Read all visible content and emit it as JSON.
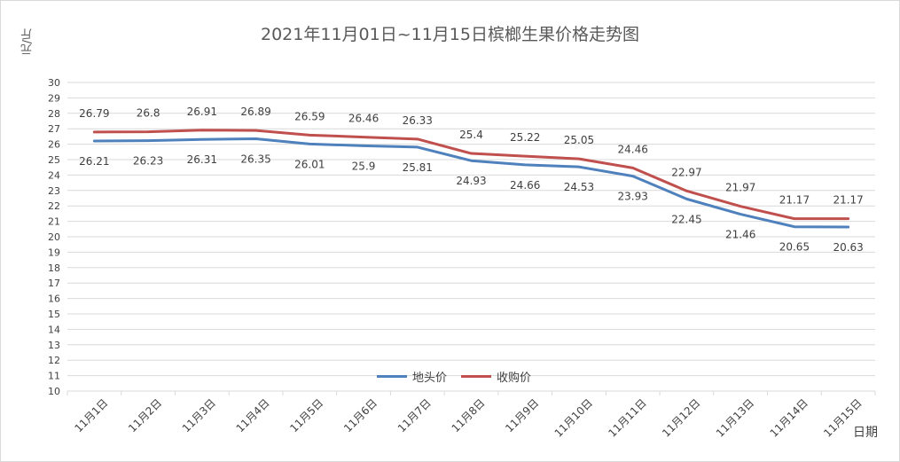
{
  "chart_data": {
    "type": "line",
    "title": "2021年11月01日~11月15日槟榔生果价格走势图",
    "ylabel": "元/斤",
    "xlabel": "日期",
    "ylim": [
      10,
      30
    ],
    "yticks": [
      10,
      11,
      12,
      13,
      14,
      15,
      16,
      17,
      18,
      19,
      20,
      21,
      22,
      23,
      24,
      25,
      26,
      27,
      28,
      29,
      30
    ],
    "grid": true,
    "legend_position": "bottom-center",
    "categories": [
      "11月1日",
      "11月2日",
      "11月3日",
      "11月4日",
      "11月5日",
      "11月6日",
      "11月7日",
      "11月8日",
      "11月9日",
      "11月10日",
      "11月11日",
      "11月12日",
      "11月13日",
      "11月14日",
      "11月15日"
    ],
    "series": [
      {
        "name": "地头价",
        "color": "#4f81bd",
        "values": [
          26.21,
          26.23,
          26.31,
          26.35,
          26.01,
          25.9,
          25.81,
          24.93,
          24.66,
          24.53,
          23.93,
          22.45,
          21.46,
          20.65,
          20.63
        ],
        "labels": [
          "26.21",
          "26.23",
          "26.31",
          "26.35",
          "26.01",
          "25.9",
          "25.81",
          "24.93",
          "24.66",
          "24.53",
          "23.93",
          "22.45",
          "21.46",
          "20.65",
          "20.63"
        ],
        "label_position": "below"
      },
      {
        "name": "收购价",
        "color": "#c0504d",
        "values": [
          26.79,
          26.8,
          26.91,
          26.89,
          26.59,
          26.46,
          26.33,
          25.4,
          25.22,
          25.05,
          24.46,
          22.97,
          21.97,
          21.17,
          21.17
        ],
        "labels": [
          "26.79",
          "26.8",
          "26.91",
          "26.89",
          "26.59",
          "26.46",
          "26.33",
          "25.4",
          "25.22",
          "25.05",
          "24.46",
          "22.97",
          "21.97",
          "21.17",
          "21.17"
        ],
        "label_position": "above"
      }
    ]
  }
}
